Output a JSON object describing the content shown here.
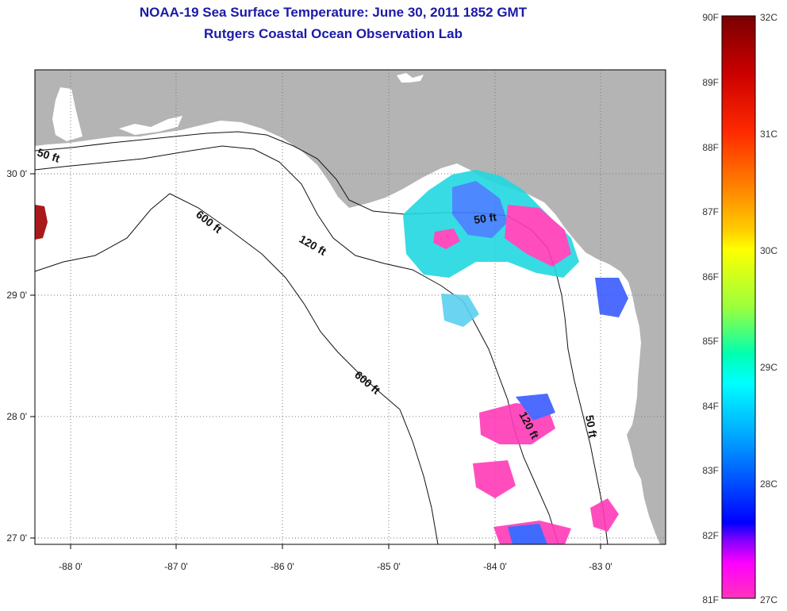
{
  "title": {
    "line1": "NOAA-19 Sea Surface Temperature:  June 30, 2011 1852 GMT",
    "line2": "Rutgers Coastal Ocean Observation Lab"
  },
  "map": {
    "lon_ticks": [
      "-88 0'",
      "-87 0'",
      "-86 0'",
      "-85 0'",
      "-84 0'",
      "-83 0'"
    ],
    "lat_ticks": [
      "30 0'",
      "29 0'",
      "28 0'",
      "27 0'"
    ],
    "contour_labels": [
      "50 ft",
      "600 ft",
      "120 ft",
      "50 ft",
      "600 ft",
      "120 ft",
      "50 ft"
    ],
    "colors": {
      "land": "#b4b4b4",
      "ocean": "#ffffff",
      "frame": "#000000"
    }
  },
  "colorbar": {
    "fahrenheit_labels": [
      "90F",
      "89F",
      "88F",
      "87F",
      "86F",
      "85F",
      "84F",
      "83F",
      "82F",
      "81F"
    ],
    "celsius_labels": [
      "32C",
      "31C",
      "30C",
      "29C",
      "28C",
      "27C"
    ],
    "gradient_colors": [
      "#7a0000",
      "#cc0000",
      "#ff2a00",
      "#ff8800",
      "#ffd000",
      "#ffff00",
      "#9cff3c",
      "#00ffb0",
      "#00ffff",
      "#00a8ff",
      "#0050ff",
      "#0000ff",
      "#8000ff",
      "#ff00ff",
      "#ff33bb"
    ]
  }
}
